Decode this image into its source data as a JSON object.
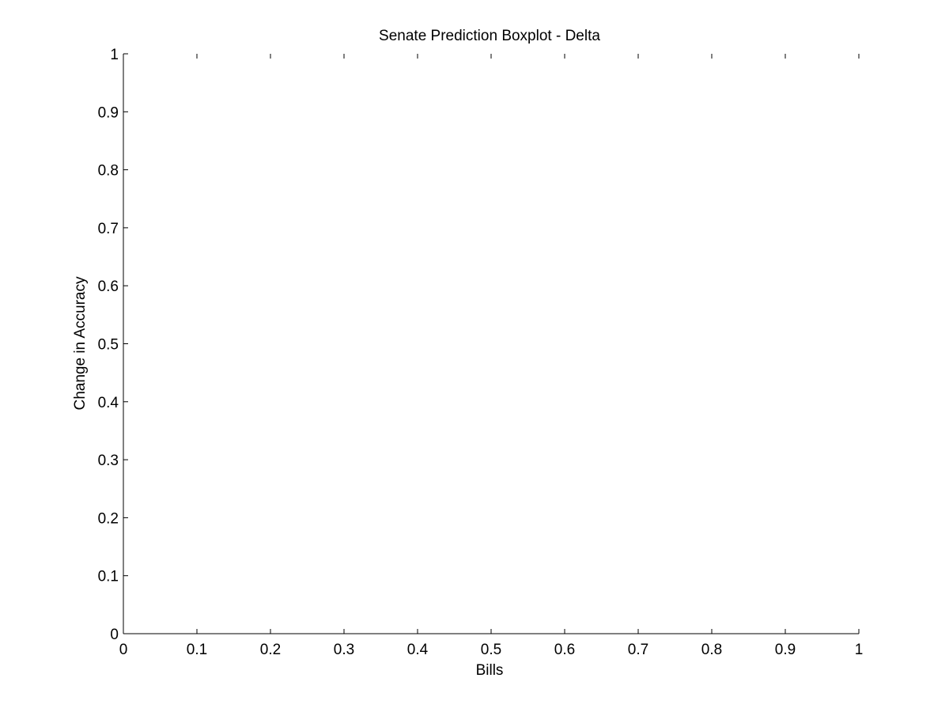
{
  "chart_data": {
    "type": "box",
    "title": "Senate Prediction Boxplot - Delta",
    "xlabel": "Bills",
    "ylabel": "Change in Accuracy",
    "xlim": [
      0,
      1
    ],
    "ylim": [
      0,
      1
    ],
    "xticks": [
      0,
      0.1,
      0.2,
      0.3,
      0.4,
      0.5,
      0.6,
      0.7,
      0.8,
      0.9,
      1
    ],
    "yticks": [
      0,
      0.1,
      0.2,
      0.3,
      0.4,
      0.5,
      0.6,
      0.7,
      0.8,
      0.9,
      1
    ],
    "xtick_labels": [
      "0",
      "0.1",
      "0.2",
      "0.3",
      "0.4",
      "0.5",
      "0.6",
      "0.7",
      "0.8",
      "0.9",
      "1"
    ],
    "ytick_labels": [
      "0",
      "0.1",
      "0.2",
      "0.3",
      "0.4",
      "0.5",
      "0.6",
      "0.7",
      "0.8",
      "0.9",
      "1"
    ],
    "series": [],
    "grid": false,
    "axis_color": "#000000",
    "background": "#ffffff"
  }
}
